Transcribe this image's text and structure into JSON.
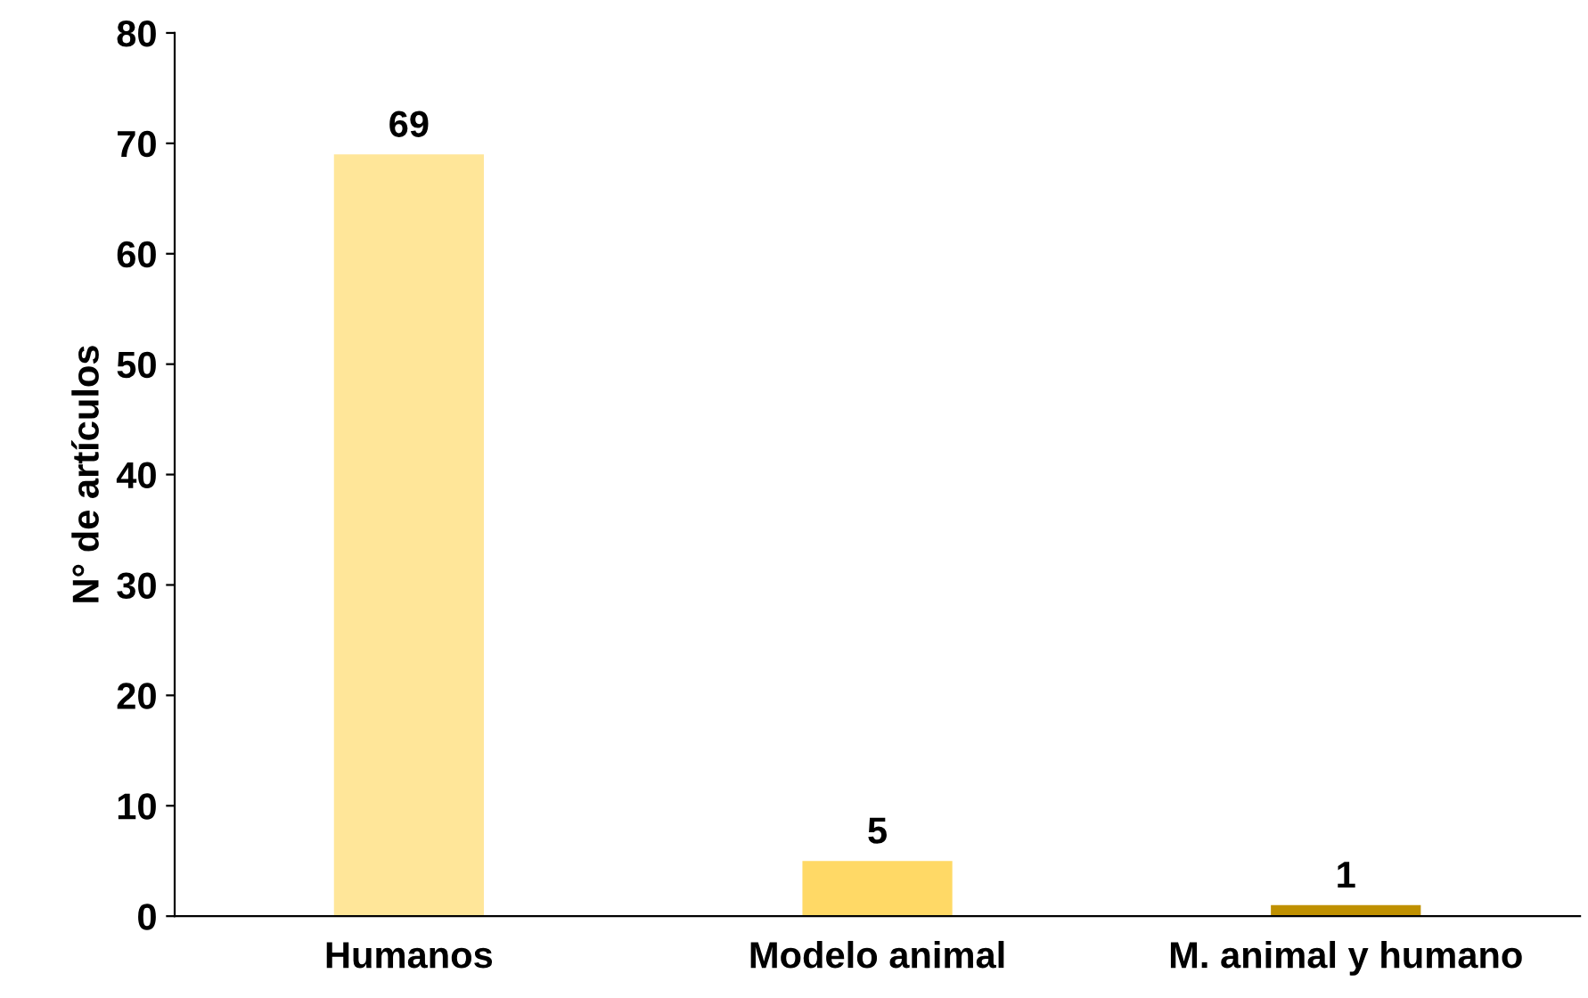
{
  "chart_data": {
    "type": "bar",
    "ylabel": "N° de artículos",
    "categories": [
      "Humanos",
      "Modelo animal",
      "M. animal y humano"
    ],
    "values": [
      69,
      5,
      1
    ],
    "colors": [
      "#ffe699",
      "#ffd966",
      "#bf9000"
    ],
    "ylim": [
      0,
      80
    ],
    "yticks": [
      0,
      10,
      20,
      30,
      40,
      50,
      60,
      70,
      80
    ],
    "data_labels": true,
    "grid": false,
    "legend": false
  }
}
